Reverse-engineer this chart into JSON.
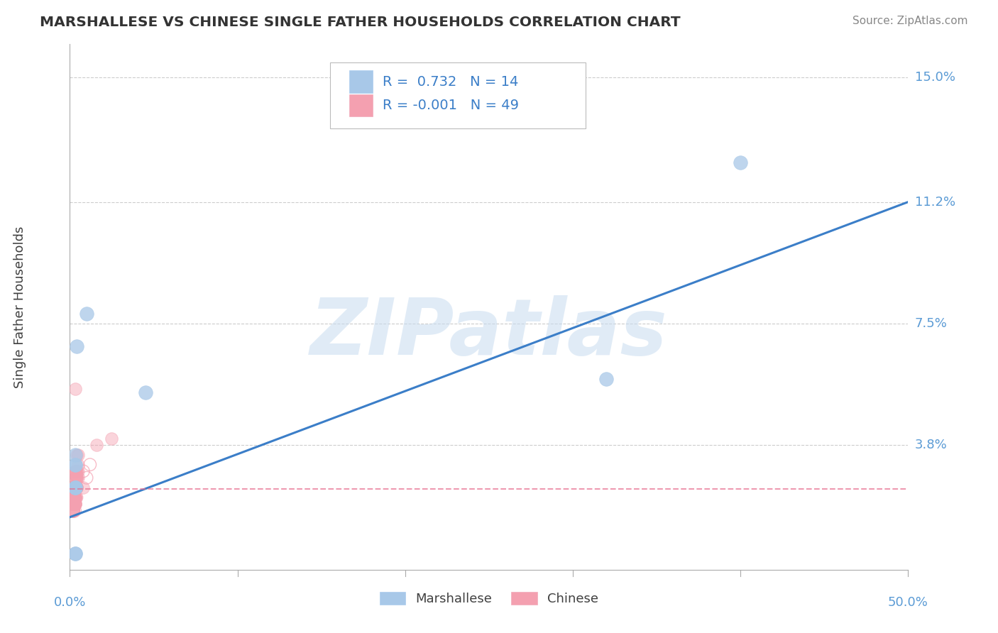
{
  "title": "MARSHALLESE VS CHINESE SINGLE FATHER HOUSEHOLDS CORRELATION CHART",
  "source": "Source: ZipAtlas.com",
  "ylabel": "Single Father Households",
  "xlim": [
    0.0,
    0.5
  ],
  "ylim": [
    0.0,
    0.16
  ],
  "ytick_labels": [
    "3.8%",
    "7.5%",
    "11.2%",
    "15.0%"
  ],
  "ytick_values": [
    0.038,
    0.075,
    0.112,
    0.15
  ],
  "marshallese_color": "#A8C8E8",
  "chinese_color": "#F4A0B0",
  "marshallese_R": 0.732,
  "marshallese_N": 14,
  "chinese_R": -0.001,
  "chinese_N": 49,
  "marshallese_x": [
    0.004,
    0.01,
    0.045,
    0.003,
    0.003,
    0.003,
    0.003,
    0.003,
    0.32,
    0.4,
    0.003,
    0.003,
    0.003,
    0.003
  ],
  "marshallese_y": [
    0.068,
    0.078,
    0.054,
    0.032,
    0.032,
    0.025,
    0.025,
    0.035,
    0.058,
    0.124,
    0.025,
    0.025,
    0.005,
    0.005
  ],
  "chinese_x": [
    0.003,
    0.004,
    0.005,
    0.003,
    0.002,
    0.004,
    0.003,
    0.003,
    0.004,
    0.005,
    0.003,
    0.002,
    0.003,
    0.004,
    0.003,
    0.002,
    0.003,
    0.004,
    0.003,
    0.002,
    0.003,
    0.004,
    0.005,
    0.003,
    0.002,
    0.003,
    0.004,
    0.002,
    0.003,
    0.002,
    0.003,
    0.004,
    0.002,
    0.003,
    0.002,
    0.003,
    0.003,
    0.002,
    0.003,
    0.002,
    0.003,
    0.004,
    0.002,
    0.003,
    0.002,
    0.016,
    0.025,
    0.008,
    0.003
  ],
  "chinese_y": [
    0.028,
    0.03,
    0.032,
    0.022,
    0.018,
    0.025,
    0.02,
    0.025,
    0.028,
    0.03,
    0.022,
    0.018,
    0.025,
    0.028,
    0.02,
    0.022,
    0.03,
    0.028,
    0.022,
    0.02,
    0.025,
    0.03,
    0.035,
    0.022,
    0.018,
    0.025,
    0.028,
    0.02,
    0.025,
    0.022,
    0.02,
    0.025,
    0.018,
    0.022,
    0.025,
    0.03,
    0.025,
    0.02,
    0.028,
    0.022,
    0.03,
    0.035,
    0.02,
    0.025,
    0.022,
    0.038,
    0.04,
    0.025,
    0.055
  ],
  "chinese_ring_x": [
    0.002,
    0.003,
    0.004,
    0.003,
    0.002,
    0.003,
    0.002,
    0.003,
    0.002,
    0.003,
    0.002,
    0.003,
    0.004,
    0.003,
    0.002,
    0.003,
    0.002,
    0.003,
    0.002,
    0.003,
    0.002,
    0.003,
    0.003,
    0.002,
    0.003,
    0.002,
    0.003,
    0.004,
    0.002,
    0.003,
    0.002,
    0.003,
    0.008,
    0.01,
    0.012,
    0.003,
    0.004,
    0.002,
    0.003,
    0.004,
    0.005
  ],
  "chinese_ring_y": [
    0.02,
    0.022,
    0.025,
    0.02,
    0.018,
    0.022,
    0.02,
    0.025,
    0.022,
    0.018,
    0.025,
    0.02,
    0.022,
    0.025,
    0.018,
    0.022,
    0.02,
    0.025,
    0.018,
    0.022,
    0.02,
    0.025,
    0.022,
    0.018,
    0.025,
    0.02,
    0.022,
    0.025,
    0.018,
    0.022,
    0.02,
    0.025,
    0.03,
    0.028,
    0.032,
    0.022,
    0.025,
    0.018,
    0.022,
    0.025,
    0.028
  ],
  "blue_line_x": [
    0.0,
    0.5
  ],
  "blue_line_y": [
    0.016,
    0.112
  ],
  "pink_line_x": [
    0.0,
    0.5
  ],
  "pink_line_y": [
    0.0245,
    0.0245
  ],
  "watermark": "ZIPatlas",
  "background_color": "#FFFFFF",
  "grid_color": "#CCCCCC",
  "title_color": "#333333",
  "tick_color": "#5B9BD5"
}
